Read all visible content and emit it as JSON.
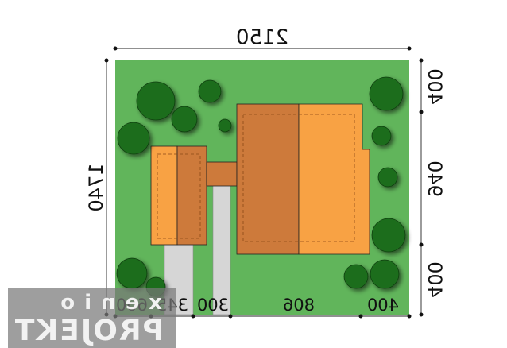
{
  "colors": {
    "lawn": "#61b55b",
    "house_light": "#f8a244",
    "house_dark": "#cd7a3b",
    "paving": "#d6d6d6",
    "tree": "#1f6d1f",
    "line": "#111111"
  },
  "dimensions": {
    "top": "2150",
    "left": "1740",
    "right": [
      "400",
      "940",
      "400"
    ],
    "bottom": [
      "600",
      "345",
      "300",
      "806",
      "400"
    ]
  },
  "watermark": {
    "line1": "xenio",
    "line2": "PROJEKT"
  }
}
